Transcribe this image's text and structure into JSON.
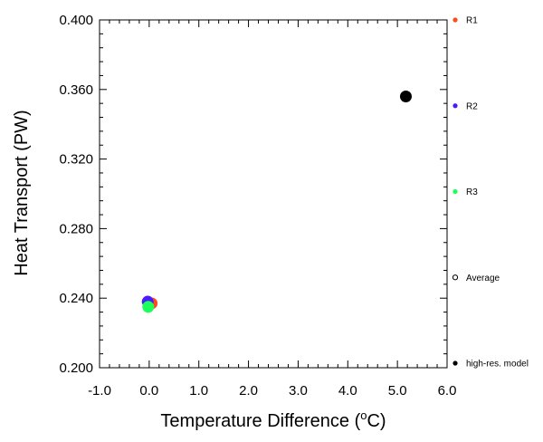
{
  "chart_data": {
    "type": "scatter",
    "xlabel": {
      "pre": "Temperature Difference (",
      "sup": "o",
      "post": "C)"
    },
    "ylabel": "Heat Transport (PW)",
    "xlim": [
      -1.0,
      6.0
    ],
    "ylim": [
      0.2,
      0.4
    ],
    "x_ticks": [
      -1.0,
      0.0,
      1.0,
      2.0,
      3.0,
      4.0,
      5.0,
      6.0
    ],
    "x_tick_labels": [
      "-1.0",
      "0.0",
      "1.0",
      "2.0",
      "3.0",
      "4.0",
      "5.0",
      "6.0"
    ],
    "y_ticks": [
      0.2,
      0.24,
      0.28,
      0.32,
      0.36,
      0.4
    ],
    "y_tick_labels": [
      "0.200",
      "0.240",
      "0.280",
      "0.320",
      "0.360",
      "0.400"
    ],
    "grid": false,
    "legend_position": "right",
    "series": [
      {
        "name": "R1",
        "color": "#ff4a1a",
        "marker": "filled-circle",
        "x": [
          0.05
        ],
        "y": [
          0.237
        ]
      },
      {
        "name": "R2",
        "color": "#4a1aff",
        "marker": "filled-circle",
        "x": [
          -0.03
        ],
        "y": [
          0.238
        ]
      },
      {
        "name": "R3",
        "color": "#1aff5a",
        "marker": "filled-circle",
        "x": [
          -0.02
        ],
        "y": [
          0.235
        ]
      },
      {
        "name": "Average",
        "color": "#000000",
        "marker": "open-circle",
        "x": [],
        "y": []
      },
      {
        "name": "high-res. model",
        "color": "#000000",
        "marker": "filled-circle",
        "x": [
          5.17
        ],
        "y": [
          0.356
        ]
      }
    ]
  }
}
